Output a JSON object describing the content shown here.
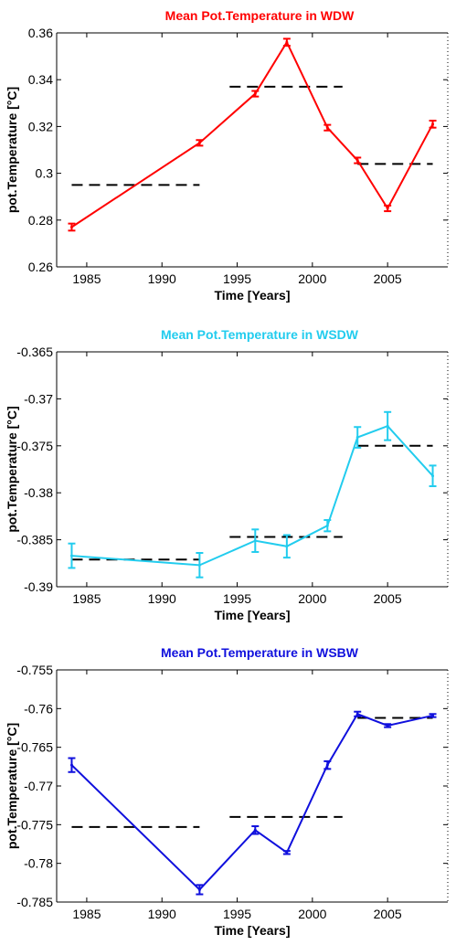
{
  "chart_data": [
    {
      "type": "line",
      "title": "Mean Pot.Temperature in WDW",
      "title_color": "#ff0000",
      "line_color": "#ff0000",
      "xlabel": "Time [Years]",
      "ylabel": "pot.Temperature [°C]",
      "xlim": [
        1983,
        2009
      ],
      "ylim": [
        0.26,
        0.36
      ],
      "xticks": [
        1985,
        1990,
        1995,
        2000,
        2005
      ],
      "yticks": [
        0.26,
        0.28,
        0.3,
        0.32,
        0.34,
        0.36
      ],
      "ytick_labels": [
        "0.26",
        "0.28",
        "0.3",
        "0.32",
        "0.34",
        "0.36"
      ],
      "series": [
        {
          "x": [
            1984,
            1992.5,
            1996.2,
            1998.3,
            2001,
            2003,
            2005,
            2008
          ],
          "y": [
            0.277,
            0.313,
            0.334,
            0.356,
            0.3195,
            0.3055,
            0.285,
            0.321
          ],
          "err": [
            0.0015,
            0.0012,
            0.0012,
            0.0015,
            0.0012,
            0.0012,
            0.0012,
            0.0015
          ]
        }
      ],
      "means": [
        {
          "x": [
            1984,
            1992.5
          ],
          "y": 0.295
        },
        {
          "x": [
            1994.5,
            2002
          ],
          "y": 0.337
        },
        {
          "x": [
            2003,
            2008
          ],
          "y": 0.304
        }
      ]
    },
    {
      "type": "line",
      "title": "Mean Pot.Temperature in WSDW",
      "title_color": "#22ccee",
      "line_color": "#22ccee",
      "xlabel": "Time [Years]",
      "ylabel": "pot.Temperature [°C]",
      "xlim": [
        1983,
        2009
      ],
      "ylim": [
        -0.39,
        -0.365
      ],
      "xticks": [
        1985,
        1990,
        1995,
        2000,
        2005
      ],
      "yticks": [
        -0.39,
        -0.385,
        -0.38,
        -0.375,
        -0.37,
        -0.365
      ],
      "ytick_labels": [
        "-0.39",
        "-0.385",
        "-0.38",
        "-0.375",
        "-0.37",
        "-0.365"
      ],
      "series": [
        {
          "x": [
            1984,
            1992.5,
            1996.2,
            1998.3,
            2001,
            2003,
            2005,
            2008
          ],
          "y": [
            -0.3867,
            -0.3877,
            -0.3851,
            -0.3857,
            -0.3835,
            -0.3741,
            -0.3729,
            -0.3782
          ],
          "err": [
            0.0013,
            0.0013,
            0.0012,
            0.0012,
            0.0006,
            0.0011,
            0.0015,
            0.0011
          ]
        }
      ],
      "means": [
        {
          "x": [
            1984,
            1992.5
          ],
          "y": -0.3871
        },
        {
          "x": [
            1994.5,
            2002
          ],
          "y": -0.3847
        },
        {
          "x": [
            2003,
            2008
          ],
          "y": -0.375
        }
      ]
    },
    {
      "type": "line",
      "title": "Mean Pot.Temperature in WSBW",
      "title_color": "#1010dd",
      "line_color": "#1010dd",
      "xlabel": "Time [Years]",
      "ylabel": "pot.Temperature [°C]",
      "xlim": [
        1983,
        2009
      ],
      "ylim": [
        -0.785,
        -0.755
      ],
      "xticks": [
        1985,
        1990,
        1995,
        2000,
        2005
      ],
      "yticks": [
        -0.785,
        -0.78,
        -0.775,
        -0.77,
        -0.765,
        -0.76,
        -0.755
      ],
      "ytick_labels": [
        "-0.785",
        "-0.78",
        "-0.775",
        "-0.77",
        "-0.765",
        "-0.76",
        "-0.755"
      ],
      "series": [
        {
          "x": [
            1984,
            1992.5,
            1996.2,
            1998.3,
            2001,
            2003,
            2005,
            2008
          ],
          "y": [
            -0.7673,
            -0.7834,
            -0.7757,
            -0.7786,
            -0.7673,
            -0.7607,
            -0.7622,
            -0.7609
          ],
          "err": [
            0.0009,
            0.0006,
            0.0005,
            0.0002,
            0.0005,
            0.0003,
            0.0002,
            0.0002
          ]
        }
      ],
      "means": [
        {
          "x": [
            1984,
            1992.5
          ],
          "y": -0.7753
        },
        {
          "x": [
            1994.5,
            2002
          ],
          "y": -0.774
        },
        {
          "x": [
            2003,
            2008
          ],
          "y": -0.7612
        }
      ]
    }
  ]
}
